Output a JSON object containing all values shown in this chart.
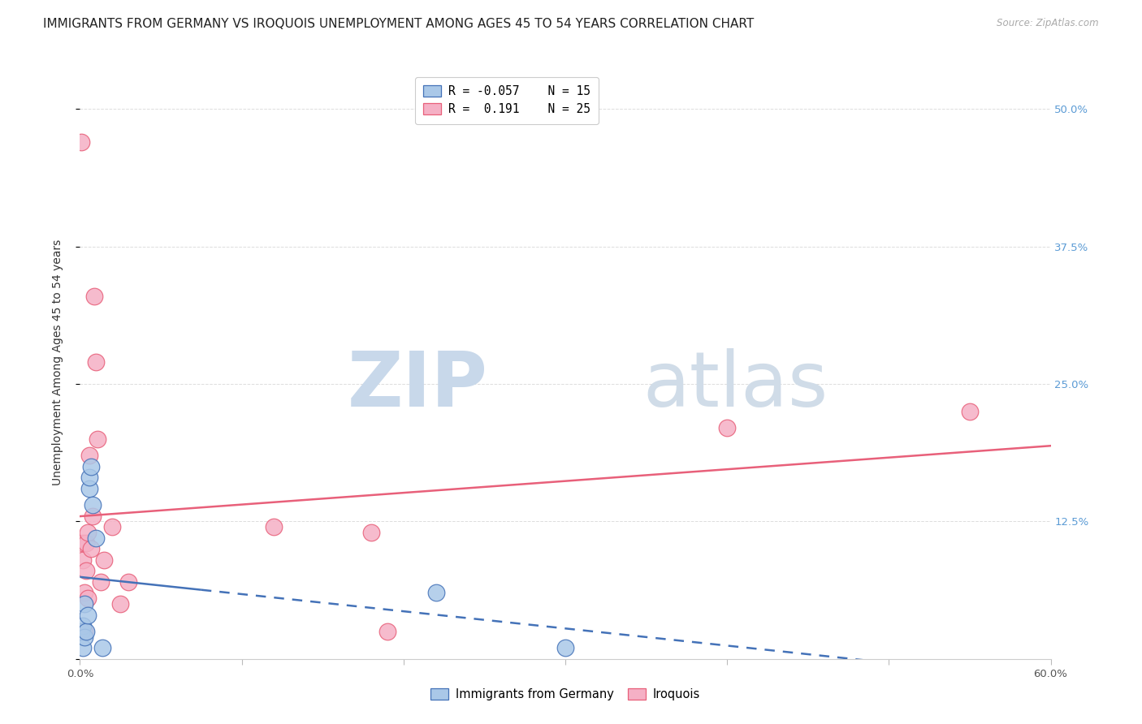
{
  "title": "IMMIGRANTS FROM GERMANY VS IROQUOIS UNEMPLOYMENT AMONG AGES 45 TO 54 YEARS CORRELATION CHART",
  "source": "Source: ZipAtlas.com",
  "xlabel_germany": "Immigrants from Germany",
  "xlabel_iroquois": "Iroquois",
  "ylabel": "Unemployment Among Ages 45 to 54 years",
  "xlim": [
    0.0,
    0.6
  ],
  "ylim": [
    0.0,
    0.54
  ],
  "germany_R": -0.057,
  "germany_N": 15,
  "iroquois_R": 0.191,
  "iroquois_N": 25,
  "germany_color": "#aac8e8",
  "iroquois_color": "#f5b0c5",
  "germany_line_color": "#4472b8",
  "iroquois_line_color": "#e8607a",
  "germany_x": [
    0.001,
    0.002,
    0.002,
    0.003,
    0.003,
    0.004,
    0.005,
    0.006,
    0.006,
    0.007,
    0.008,
    0.01,
    0.014,
    0.22,
    0.3
  ],
  "germany_y": [
    0.025,
    0.01,
    0.03,
    0.02,
    0.05,
    0.025,
    0.04,
    0.155,
    0.165,
    0.175,
    0.14,
    0.11,
    0.01,
    0.06,
    0.01
  ],
  "iroquois_x": [
    0.001,
    0.002,
    0.002,
    0.003,
    0.003,
    0.004,
    0.004,
    0.005,
    0.005,
    0.006,
    0.007,
    0.008,
    0.009,
    0.01,
    0.011,
    0.013,
    0.015,
    0.02,
    0.025,
    0.03,
    0.12,
    0.18,
    0.19,
    0.4,
    0.55
  ],
  "iroquois_y": [
    0.47,
    0.09,
    0.105,
    0.025,
    0.06,
    0.08,
    0.105,
    0.055,
    0.115,
    0.185,
    0.1,
    0.13,
    0.33,
    0.27,
    0.2,
    0.07,
    0.09,
    0.12,
    0.05,
    0.07,
    0.12,
    0.115,
    0.025,
    0.21,
    0.225
  ],
  "watermark_zip": "ZIP",
  "watermark_atlas": "atlas",
  "background_color": "#ffffff",
  "grid_color": "#dddddd",
  "ytick_right_color": "#5b9bd5",
  "title_fontsize": 11,
  "axis_label_fontsize": 10,
  "tick_label_fontsize": 9.5
}
